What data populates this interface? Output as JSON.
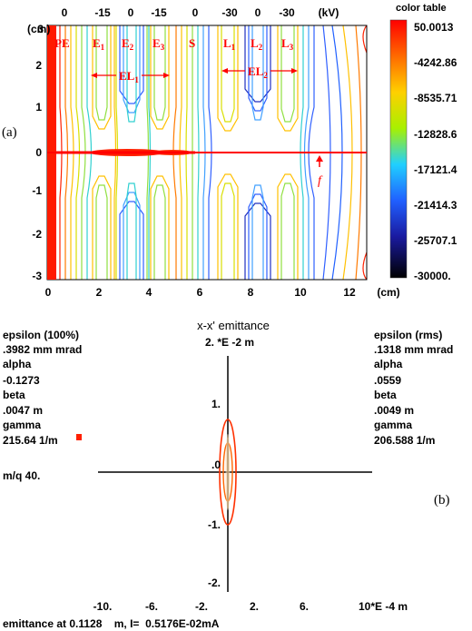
{
  "panel_a": {
    "label": "(a)",
    "unit_cm_y": "(cm)",
    "unit_cm_x": "(cm)",
    "unit_kv": "(kV)",
    "top_voltages": [
      "0",
      "-15",
      "0",
      "-15",
      "0",
      "-30",
      "0",
      "-30"
    ],
    "y_ticks": [
      "3",
      "2",
      "1",
      "0",
      "-1",
      "-2",
      "-3"
    ],
    "x_ticks": [
      "0",
      "2",
      "4",
      "6",
      "8",
      "10",
      "12"
    ],
    "electrodes": {
      "pe": "PE",
      "e1": "E",
      "e1_sub": "1",
      "e2": "E",
      "e2_sub": "2",
      "e3": "E",
      "e3_sub": "3",
      "s": "S",
      "l1": "L",
      "l1_sub": "1",
      "l2": "L",
      "l2_sub": "2",
      "l3": "L",
      "l3_sub": "3",
      "el1": "EL",
      "el1_sub": "1",
      "el2": "EL",
      "el2_sub": "2",
      "f": "f"
    },
    "color_table": {
      "title": "color table",
      "values": [
        "50.0013",
        "-4242.86",
        "-8535.71",
        "-12828.6",
        "-17121.4",
        "-21414.3",
        "-25707.1",
        "-30000."
      ],
      "colors": [
        "#ff0000",
        "#ff6a00",
        "#ffd000",
        "#a8f000",
        "#20d0ff",
        "#2060ff",
        "#1a1aa0",
        "#000000"
      ]
    }
  },
  "panel_b": {
    "label": "(b)",
    "title": "x-x' emittance",
    "y_scale": "2. *E -2 m",
    "x_scale": "10*E -4 m",
    "x_ticks": [
      "-10.",
      "-6.",
      "-2.",
      "2.",
      "6."
    ],
    "y_ticks": [
      "1.",
      ".0",
      "-1.",
      "-2."
    ],
    "left_stats": {
      "eps_label": "epsilon (100%)",
      "eps_value": ".3982 mm mrad",
      "alpha_label": "alpha",
      "alpha_value": "-0.1273",
      "beta_label": "beta",
      "beta_value": ".0047 m",
      "gamma_label": "gamma",
      "gamma_value": "215.64 1/m",
      "mq": "m/q 40."
    },
    "right_stats": {
      "eps_label": "epsilon (rms)",
      "eps_value": ".1318 mm mrad",
      "alpha_label": "alpha",
      "alpha_value": ".0559",
      "beta_label": "beta",
      "beta_value": ".0049 m",
      "gamma_label": "gamma",
      "gamma_value": "206.588 1/m"
    },
    "footer": "emittance at 0.1128    m, I=  0.5176E-02mA"
  }
}
